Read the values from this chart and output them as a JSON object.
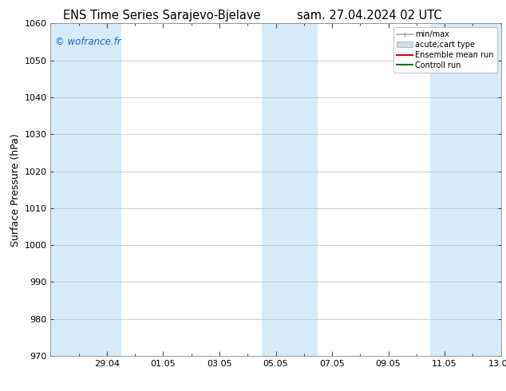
{
  "title_left": "ENS Time Series Sarajevo-Bjelave",
  "title_right": "sam. 27.04.2024 02 UTC",
  "ylabel": "Surface Pressure (hPa)",
  "ylim": [
    970,
    1060
  ],
  "yticks": [
    970,
    980,
    990,
    1000,
    1010,
    1020,
    1030,
    1040,
    1050,
    1060
  ],
  "xlim": [
    0,
    16
  ],
  "xtick_labels": [
    "29.04",
    "01.05",
    "03.05",
    "05.05",
    "07.05",
    "09.05",
    "11.05",
    "13.05"
  ],
  "xtick_positions": [
    2,
    4,
    6,
    8,
    10,
    12,
    14,
    16
  ],
  "watermark": "© wofrance.fr",
  "watermark_color": "#1a6abf",
  "bg_color": "#ffffff",
  "plot_bg_color": "#ffffff",
  "shaded_bands": [
    {
      "x_start": 0,
      "x_end": 2.5,
      "color": "#d6eaf8"
    },
    {
      "x_start": 7.5,
      "x_end": 9.5,
      "color": "#d6eaf8"
    },
    {
      "x_start": 13.5,
      "x_end": 16,
      "color": "#d6eaf8"
    }
  ],
  "legend_entries": [
    {
      "label": "min/max",
      "color": "#aaaaaa",
      "style": "errorbar"
    },
    {
      "label": "acute;cart type",
      "color": "#ccddee",
      "style": "bar"
    },
    {
      "label": "Ensemble mean run",
      "color": "#dd0000",
      "style": "line"
    },
    {
      "label": "Controll run",
      "color": "#007700",
      "style": "line"
    }
  ],
  "title_fontsize": 10.5,
  "tick_fontsize": 8,
  "ylabel_fontsize": 9,
  "legend_fontsize": 7,
  "grid_color": "#bbbbbb",
  "axis_color": "#888888"
}
